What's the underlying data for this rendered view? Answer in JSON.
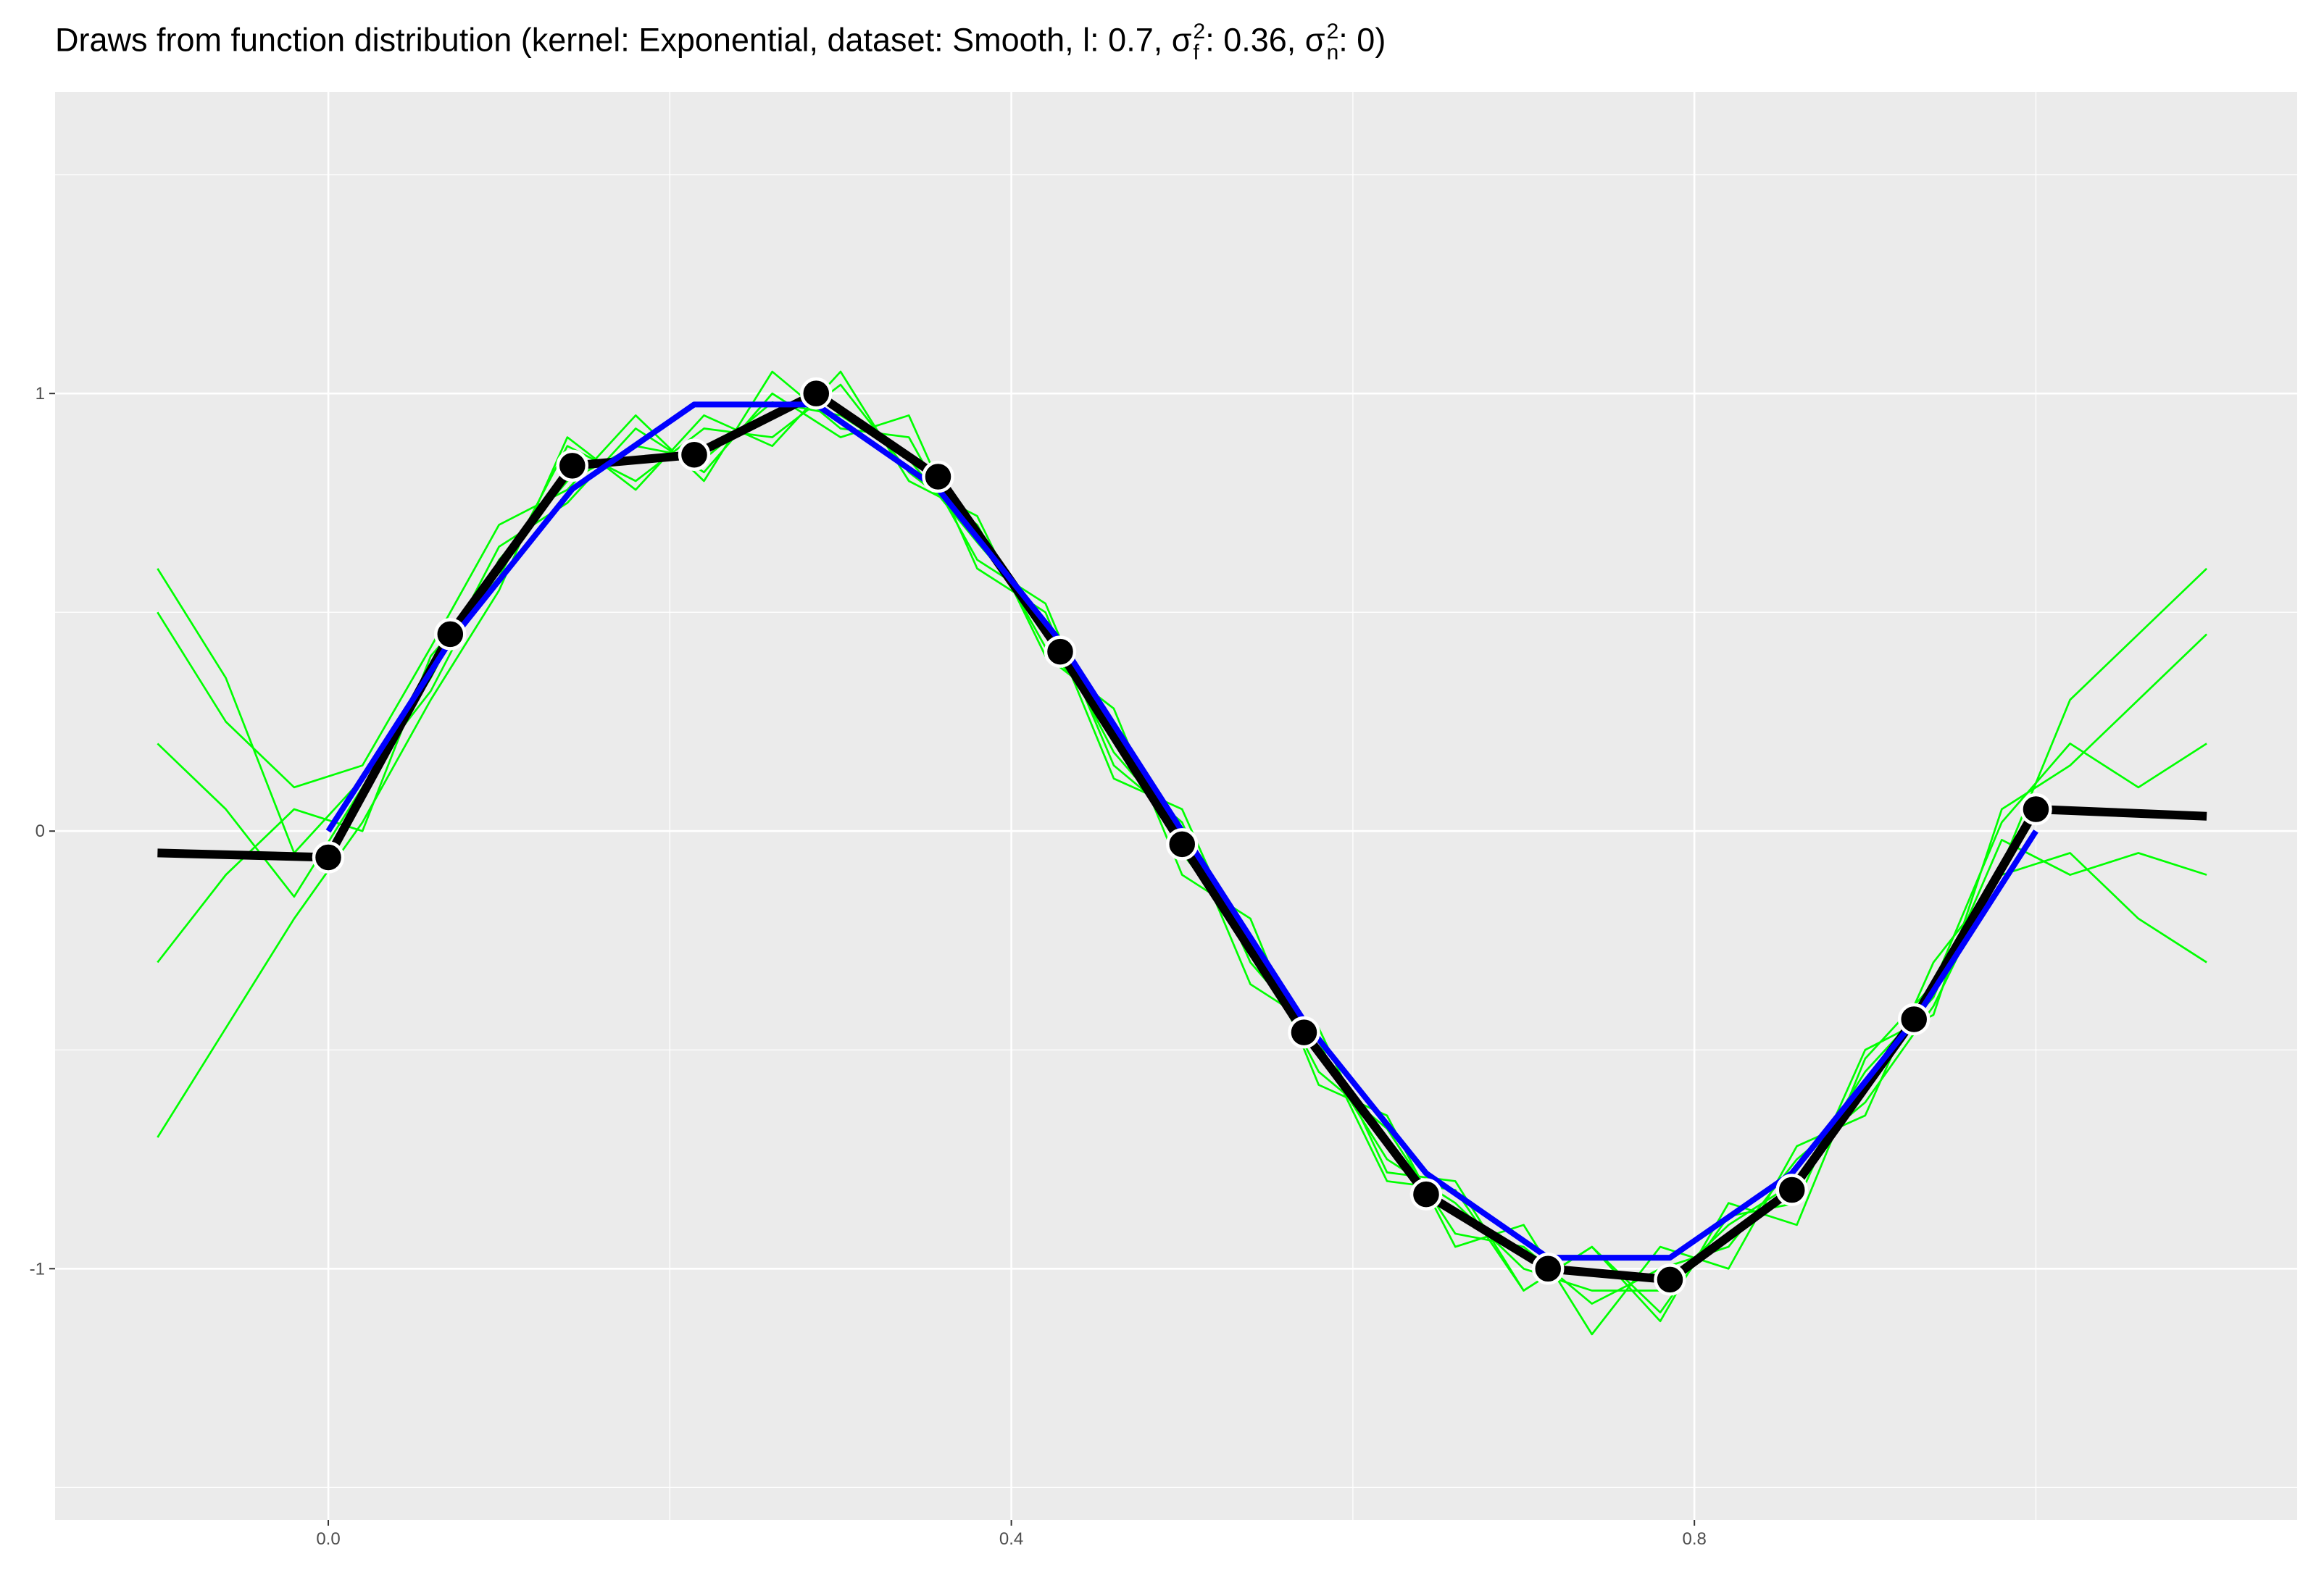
{
  "chart_data": {
    "type": "line",
    "title": [
      "Draws from function distribution (kernel: Exponential, dataset: Smooth, l: 0.7, σ",
      "2",
      "f",
      ": 0.36, σ",
      "2",
      "n",
      ": 0)"
    ],
    "xlim": [
      -0.16,
      1.153
    ],
    "ylim": [
      -1.574,
      1.689
    ],
    "xticks": [
      {
        "value": 0,
        "label": "0.0"
      },
      0.4,
      0.8
    ],
    "yticks": [
      -1,
      0,
      1
    ],
    "xminor": [
      0.2,
      0.6,
      1.0
    ],
    "yminor": [
      -1.5,
      -0.5,
      0.5,
      1.5
    ],
    "grid": true,
    "background": "#ebebeb",
    "series": [
      {
        "type": "line",
        "color": "#00ff00",
        "x": [
          -0.1,
          -0.06,
          -0.02,
          0.02,
          0.06,
          0.1,
          0.14,
          0.18,
          0.22,
          0.26,
          0.3,
          0.34,
          0.38,
          0.42,
          0.46,
          0.5,
          0.54,
          0.58,
          0.62,
          0.66,
          0.7,
          0.74,
          0.78,
          0.82,
          0.86,
          0.9,
          0.94,
          0.98,
          1.02,
          1.06,
          1.1
        ],
        "values": [
          0.5,
          0.25,
          0.1,
          0.15,
          0.42,
          0.7,
          0.78,
          0.95,
          0.8,
          1.05,
          0.92,
          0.9,
          0.62,
          0.52,
          0.15,
          0.02,
          -0.35,
          -0.45,
          -0.78,
          -0.8,
          -1.05,
          -0.95,
          -1.1,
          -0.88,
          -0.85,
          -0.5,
          -0.42,
          0.05,
          0.15,
          0.3,
          0.45
        ]
      },
      {
        "type": "line",
        "color": "#00ff00",
        "x": [
          -0.1,
          -0.06,
          -0.02,
          0.02,
          0.06,
          0.1,
          0.14,
          0.18,
          0.22,
          0.26,
          0.3,
          0.34,
          0.38,
          0.42,
          0.46,
          0.5,
          0.54,
          0.58,
          0.62,
          0.66,
          0.7,
          0.74,
          0.78,
          0.82,
          0.86,
          0.9,
          0.94,
          0.98,
          1.02,
          1.06,
          1.1
        ],
        "values": [
          -0.7,
          -0.45,
          -0.2,
          0.02,
          0.3,
          0.55,
          0.9,
          0.78,
          0.95,
          0.88,
          1.05,
          0.8,
          0.72,
          0.4,
          0.28,
          -0.1,
          -0.2,
          -0.58,
          -0.65,
          -0.95,
          -0.9,
          -1.15,
          -0.95,
          -1.0,
          -0.72,
          -0.65,
          -0.3,
          -0.1,
          -0.05,
          -0.2,
          -0.3
        ]
      },
      {
        "type": "line",
        "color": "#00ff00",
        "x": [
          -0.1,
          -0.06,
          -0.02,
          0.02,
          0.06,
          0.1,
          0.14,
          0.18,
          0.22,
          0.26,
          0.3,
          0.34,
          0.38,
          0.42,
          0.46,
          0.5,
          0.54,
          0.58,
          0.62,
          0.66,
          0.7,
          0.74,
          0.78,
          0.82,
          0.86,
          0.9,
          0.94,
          0.98,
          1.02,
          1.06,
          1.1
        ],
        "values": [
          0.2,
          0.05,
          -0.15,
          0.1,
          0.35,
          0.65,
          0.75,
          0.92,
          0.82,
          1.0,
          0.9,
          0.95,
          0.6,
          0.5,
          0.12,
          0.05,
          -0.3,
          -0.48,
          -0.8,
          -0.82,
          -1.05,
          -0.95,
          -1.12,
          -0.85,
          -0.9,
          -0.52,
          -0.35,
          0.02,
          0.2,
          0.1,
          0.2
        ]
      },
      {
        "type": "line",
        "color": "#00ff00",
        "x": [
          -0.1,
          -0.06,
          -0.02,
          0.02,
          0.06,
          0.1,
          0.14,
          0.18,
          0.22,
          0.26,
          0.3,
          0.34,
          0.38,
          0.42,
          0.46,
          0.5,
          0.54,
          0.58,
          0.62,
          0.66,
          0.7,
          0.74,
          0.78,
          0.82,
          0.86,
          0.9,
          0.94,
          0.98,
          1.02,
          1.06,
          1.1
        ],
        "values": [
          -0.3,
          -0.1,
          0.05,
          0.0,
          0.4,
          0.58,
          0.88,
          0.8,
          0.92,
          0.9,
          1.02,
          0.82,
          0.7,
          0.42,
          0.25,
          -0.05,
          -0.25,
          -0.55,
          -0.68,
          -0.92,
          -0.95,
          -1.08,
          -1.0,
          -0.95,
          -0.75,
          -0.62,
          -0.4,
          -0.08,
          0.3,
          0.45,
          0.6
        ]
      },
      {
        "type": "line",
        "color": "#00ff00",
        "x": [
          -0.1,
          -0.06,
          -0.02,
          0.02,
          0.06,
          0.1,
          0.14,
          0.18,
          0.22,
          0.26,
          0.3,
          0.34,
          0.38,
          0.42,
          0.46,
          0.5,
          0.54,
          0.58,
          0.62,
          0.66,
          0.7,
          0.74,
          0.78,
          0.82,
          0.86,
          0.9,
          0.94,
          0.98,
          1.02,
          1.06,
          1.1
        ],
        "values": [
          0.6,
          0.35,
          -0.05,
          0.12,
          0.32,
          0.62,
          0.8,
          0.88,
          0.85,
          0.98,
          0.95,
          0.85,
          0.66,
          0.48,
          0.18,
          0.0,
          -0.28,
          -0.5,
          -0.75,
          -0.85,
          -1.0,
          -1.05,
          -1.05,
          -0.9,
          -0.8,
          -0.55,
          -0.38,
          -0.02,
          -0.1,
          -0.05,
          -0.1
        ]
      },
      {
        "type": "line",
        "color": "#000000",
        "width": 12,
        "x": [
          -0.1,
          0,
          0.0714,
          0.1429,
          0.2143,
          0.2857,
          0.3571,
          0.4286,
          0.5,
          0.5714,
          0.6429,
          0.7143,
          0.7857,
          0.8571,
          0.9286,
          1,
          1.1
        ],
        "values": [
          -0.05,
          -0.06,
          0.45,
          0.835,
          0.86,
          1.0,
          0.81,
          0.41,
          -0.03,
          -0.46,
          -0.83,
          -1.0,
          -1.025,
          -0.82,
          -0.43,
          0.05,
          0.034
        ]
      },
      {
        "type": "line",
        "color": "#0000ff",
        "width": 8,
        "x": [
          0,
          0.0714,
          0.1429,
          0.2143,
          0.2857,
          0.3571,
          0.4286,
          0.5,
          0.5714,
          0.6429,
          0.7143,
          0.7857,
          0.8571,
          0.9286,
          1
        ],
        "values": [
          0,
          0.4339,
          0.7818,
          0.9749,
          0.9749,
          0.7818,
          0.4339,
          0,
          -0.4339,
          -0.7818,
          -0.9749,
          -0.9749,
          -0.7818,
          -0.4339,
          0
        ]
      },
      {
        "type": "scatter",
        "color": "#000000",
        "x": [
          0,
          0.0714,
          0.1429,
          0.2143,
          0.2857,
          0.3571,
          0.4286,
          0.5,
          0.5714,
          0.6429,
          0.7143,
          0.7857,
          0.8571,
          0.9286,
          1
        ],
        "values": [
          -0.06,
          0.45,
          0.835,
          0.86,
          1.0,
          0.81,
          0.41,
          -0.03,
          -0.46,
          -0.83,
          -1.0,
          -1.025,
          -0.82,
          -0.43,
          0.05
        ]
      }
    ]
  }
}
